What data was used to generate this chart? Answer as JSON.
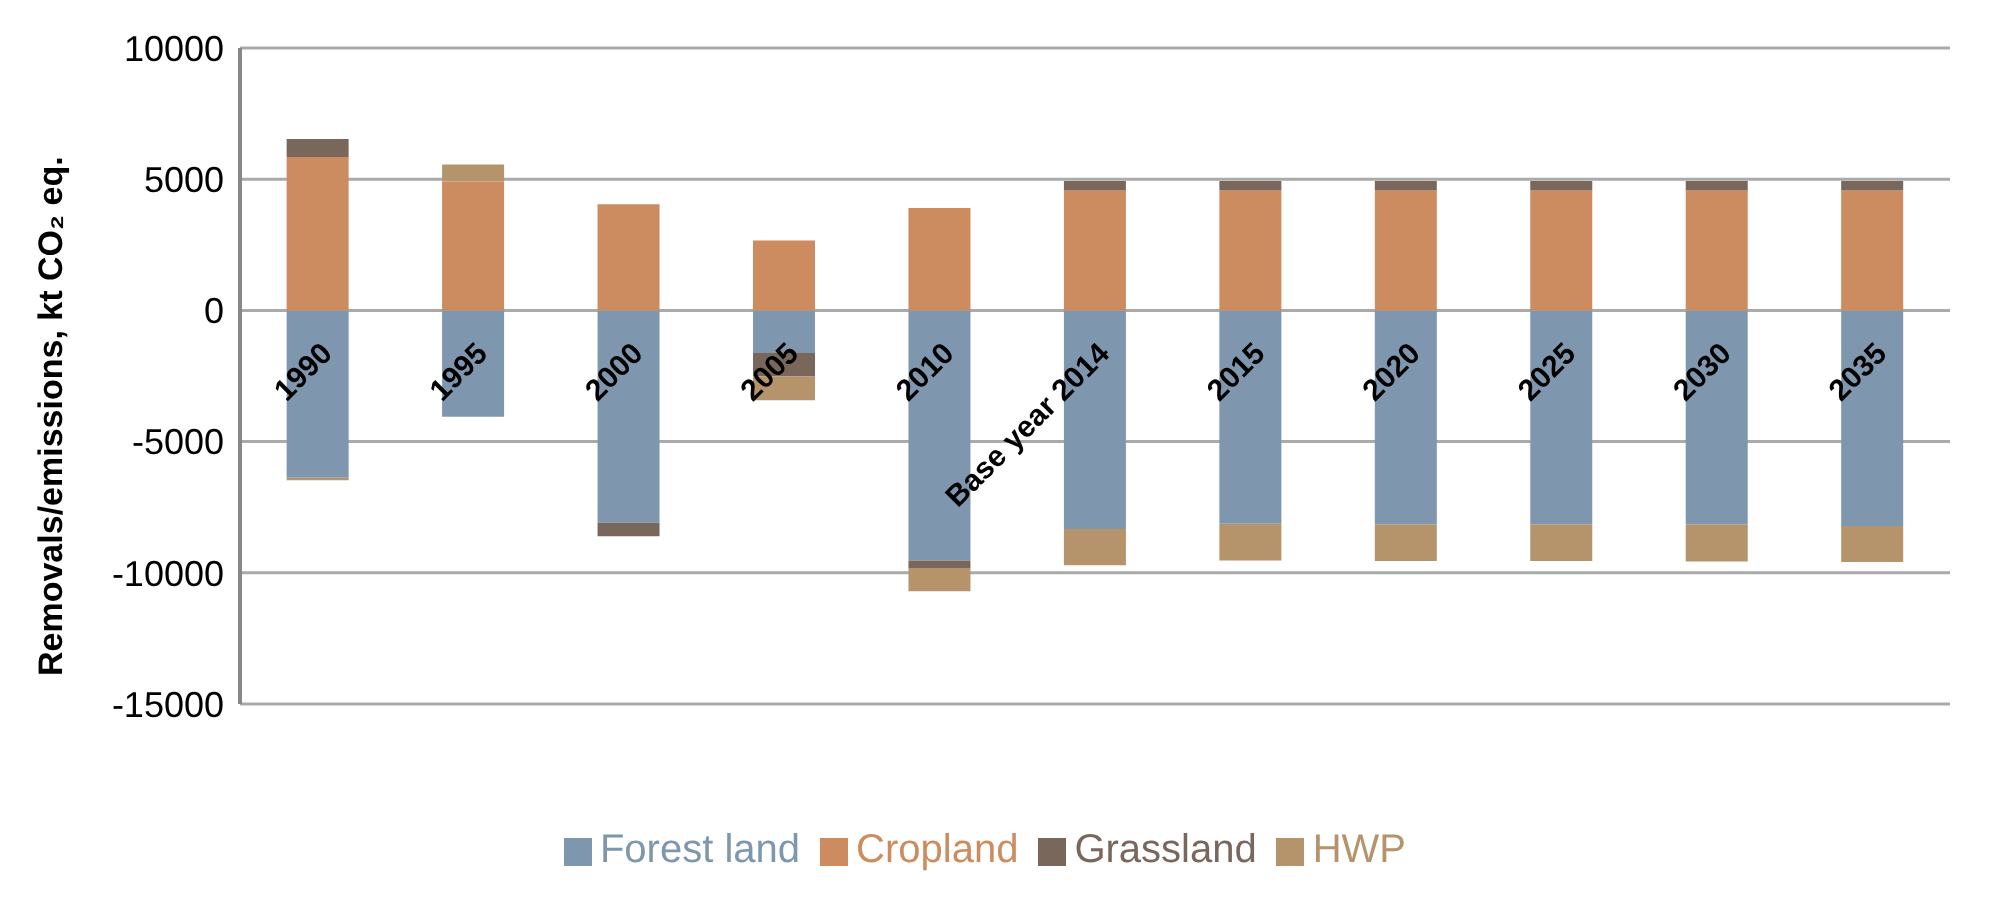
{
  "chart_data": {
    "type": "bar",
    "stacked": true,
    "ylabel": "Removals/emissions, kt CO₂ eq.",
    "categories": [
      "1990",
      "1995",
      "2000",
      "2005",
      "2010",
      "Base year 2014",
      "2015",
      "2020",
      "2025",
      "2030",
      "2035"
    ],
    "series": [
      {
        "name": "Forest land",
        "color": "#7f97ae",
        "values": [
          -6380,
          -4050,
          -8090,
          -1620,
          -9530,
          -8330,
          -8130,
          -8150,
          -8150,
          -8150,
          -8220
        ]
      },
      {
        "name": "Cropland",
        "color": "#cc8c5f",
        "values": [
          5850,
          4910,
          4050,
          2660,
          3900,
          4570,
          4570,
          4570,
          4570,
          4570,
          4570
        ]
      },
      {
        "name": "Grassland",
        "color": "#7a675c",
        "values": [
          680,
          null,
          -520,
          -900,
          -290,
          360,
          360,
          360,
          360,
          360,
          360
        ]
      },
      {
        "name": "HWP",
        "color": "#b5936b",
        "values": [
          -90,
          650,
          null,
          -900,
          -880,
          -1380,
          -1400,
          -1400,
          -1400,
          -1420,
          -1370
        ]
      }
    ],
    "ylim": [
      -15000,
      10000
    ],
    "yticks": [
      -15000,
      -10000,
      -5000,
      0,
      5000,
      10000
    ],
    "grid": "y",
    "legend": "bottom"
  }
}
